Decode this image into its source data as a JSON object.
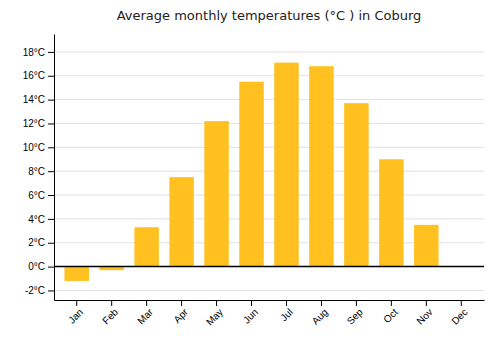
{
  "chart_data": {
    "type": "bar",
    "title": "Average monthly temperatures (°C ) in Coburg",
    "categories": [
      "Jan",
      "Feb",
      "Mar",
      "Apr",
      "May",
      "Jun",
      "Jul",
      "Aug",
      "Sep",
      "Oct",
      "Nov",
      "Dec"
    ],
    "values": [
      -1.2,
      -0.3,
      3.3,
      7.5,
      12.2,
      15.5,
      17.1,
      16.8,
      13.7,
      9.0,
      3.5,
      0.0
    ],
    "color": "#FFC020",
    "ylim": [
      -2.8,
      19.5
    ],
    "yticks": [
      {
        "value": -2,
        "label": "-2°C"
      },
      {
        "value": 0,
        "label": "0°C"
      },
      {
        "value": 2,
        "label": "2°C"
      },
      {
        "value": 4,
        "label": "4°C"
      },
      {
        "value": 6,
        "label": "6°C"
      },
      {
        "value": 8,
        "label": "8°C"
      },
      {
        "value": 10,
        "label": "10°C"
      },
      {
        "value": 12,
        "label": "12°C"
      },
      {
        "value": 14,
        "label": "14°C"
      },
      {
        "value": 16,
        "label": "16°C"
      },
      {
        "value": 18,
        "label": "18°C"
      }
    ],
    "grid": true
  }
}
